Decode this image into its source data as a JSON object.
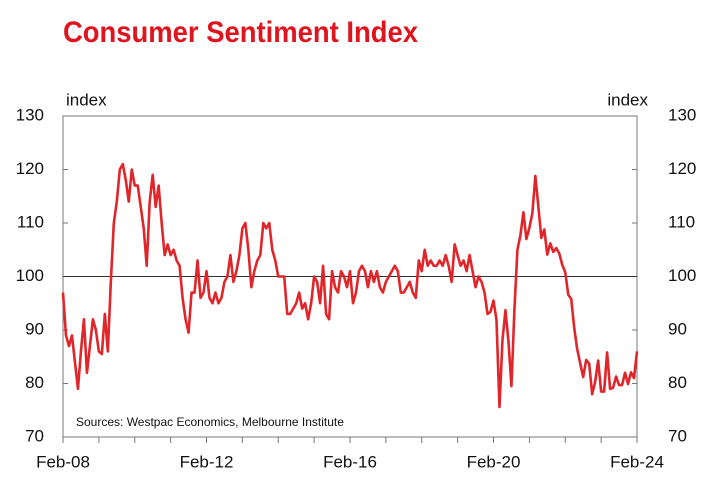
{
  "chart_data": {
    "type": "line",
    "title": "Consumer Sentiment Index",
    "y_label": "index",
    "y2_label": "index",
    "annotation": "Sources: Westpac Economics, Melbourne Institute",
    "categories": [
      "Feb-08",
      null,
      null,
      null,
      null,
      null,
      null,
      null,
      null,
      null,
      null,
      null,
      null,
      null,
      null,
      null,
      null,
      null,
      null,
      null,
      null,
      null,
      null,
      null,
      null,
      null,
      null,
      null,
      null,
      null,
      null,
      null,
      null,
      null,
      null,
      null,
      null,
      null,
      null,
      null,
      null,
      null,
      null,
      null,
      null,
      null,
      null,
      null,
      "Feb-12",
      null,
      null,
      null,
      null,
      null,
      null,
      null,
      null,
      null,
      null,
      null,
      null,
      null,
      null,
      null,
      null,
      null,
      null,
      null,
      null,
      null,
      null,
      null,
      null,
      null,
      null,
      null,
      null,
      null,
      null,
      null,
      null,
      null,
      null,
      null,
      null,
      null,
      null,
      null,
      null,
      null,
      null,
      null,
      null,
      null,
      null,
      null,
      "Feb-16",
      null,
      null,
      null,
      null,
      null,
      null,
      null,
      null,
      null,
      null,
      null,
      null,
      null,
      null,
      null,
      null,
      null,
      null,
      null,
      null,
      null,
      null,
      null,
      null,
      null,
      null,
      null,
      null,
      null,
      null,
      null,
      null,
      null,
      null,
      null,
      null,
      null,
      null,
      null,
      null,
      null,
      null,
      null,
      null,
      null,
      null,
      null,
      "Feb-20",
      null,
      null,
      null,
      null,
      null,
      null,
      null,
      null,
      null,
      null,
      null,
      null,
      null,
      null,
      null,
      null,
      null,
      null,
      null,
      null,
      null,
      null,
      null,
      null,
      null,
      null,
      null,
      null,
      null,
      null,
      null,
      null,
      null,
      null,
      null,
      null,
      null,
      null,
      null,
      null,
      null,
      null,
      null,
      null,
      null,
      null,
      null,
      "Feb-24"
    ],
    "series": [
      {
        "color": "#e0262b",
        "values": [
          97,
          89,
          87,
          89,
          84,
          79,
          86,
          92,
          82,
          87,
          92,
          90,
          86,
          85.5,
          93,
          86,
          99,
          110,
          114,
          120,
          121,
          118,
          114,
          120,
          117,
          117,
          113,
          109,
          102,
          114,
          119,
          113,
          117,
          110,
          104,
          106,
          104,
          105,
          103,
          102,
          96,
          92,
          89.5,
          97,
          97,
          103,
          96,
          97,
          101,
          96,
          95,
          97,
          95,
          96,
          99,
          100,
          104,
          99,
          101,
          104,
          109,
          110,
          105,
          98,
          101,
          103,
          104,
          110,
          109,
          110,
          105,
          103,
          100,
          100,
          100,
          93,
          93,
          94,
          95,
          97,
          94,
          95,
          92,
          95,
          100,
          99,
          95,
          102,
          93,
          92,
          101,
          98,
          97,
          101,
          100,
          98,
          101,
          95,
          97,
          101,
          102,
          101,
          98,
          101,
          99,
          101,
          98,
          97,
          99,
          100,
          101,
          102,
          101,
          97,
          97,
          98,
          99,
          97,
          96,
          103,
          101,
          105,
          102,
          103,
          102,
          102,
          103,
          102,
          104,
          102,
          99,
          106,
          104,
          102,
          103,
          101,
          104,
          101,
          98,
          100,
          99,
          97,
          93,
          93.4,
          95.5,
          91.9,
          75.6,
          88.1,
          93.7,
          87.9,
          79.5,
          93.8,
          105,
          107.7,
          112,
          107,
          109.1,
          111.8,
          118.8,
          113.1,
          107.2,
          108.8,
          104.1,
          106.2,
          104.6,
          105.3,
          104.3,
          102.2,
          100.8,
          96.6,
          95.8,
          90.4,
          86.4,
          83.8,
          81.2,
          84.4,
          83.7,
          78,
          80.3,
          84.3,
          78.5,
          78.5,
          85.8,
          79,
          79.2,
          81.3,
          79.7,
          79.7,
          82,
          79.9,
          82.1,
          81,
          86
        ]
      }
    ],
    "ylim": [
      70,
      130
    ],
    "yticks": [
      70,
      80,
      90,
      100,
      110,
      120,
      130
    ],
    "y2lim": [
      70,
      130
    ],
    "y2ticks": [
      70,
      80,
      90,
      100,
      110,
      120,
      130
    ],
    "reference_line": 100,
    "grid": false
  }
}
